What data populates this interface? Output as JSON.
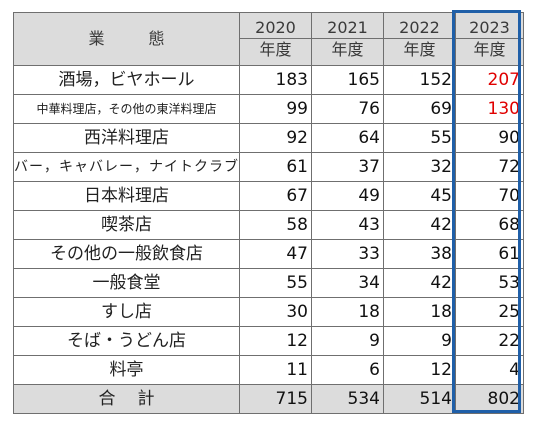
{
  "header": {
    "category_label": "業　態",
    "years": [
      {
        "year": "2020",
        "unit": "年度"
      },
      {
        "year": "2021",
        "unit": "年度"
      },
      {
        "year": "2022",
        "unit": "年度"
      },
      {
        "year": "2023",
        "unit": "年度"
      }
    ]
  },
  "rows": [
    {
      "name": "酒場，ビヤホール",
      "v2020": "183",
      "v2021": "165",
      "v2022": "152",
      "v2023": "207"
    },
    {
      "name": "中華料理店，その他の東洋料理店",
      "v2020": "99",
      "v2021": "76",
      "v2022": "69",
      "v2023": "130"
    },
    {
      "name": "西洋料理店",
      "v2020": "92",
      "v2021": "64",
      "v2022": "55",
      "v2023": "90"
    },
    {
      "name": "バー，キャバレー，ナイトクラブ",
      "v2020": "61",
      "v2021": "37",
      "v2022": "32",
      "v2023": "72"
    },
    {
      "name": "日本料理店",
      "v2020": "67",
      "v2021": "49",
      "v2022": "45",
      "v2023": "70"
    },
    {
      "name": "喫茶店",
      "v2020": "58",
      "v2021": "43",
      "v2022": "42",
      "v2023": "68"
    },
    {
      "name": "その他の一般飲食店",
      "v2020": "47",
      "v2021": "33",
      "v2022": "38",
      "v2023": "61"
    },
    {
      "name": "一般食堂",
      "v2020": "55",
      "v2021": "34",
      "v2022": "42",
      "v2023": "53"
    },
    {
      "name": "すし店",
      "v2020": "30",
      "v2021": "18",
      "v2022": "18",
      "v2023": "25"
    },
    {
      "name": "そば・うどん店",
      "v2020": "12",
      "v2021": "9",
      "v2022": "9",
      "v2023": "22"
    },
    {
      "name": "料亭",
      "v2020": "11",
      "v2021": "6",
      "v2022": "12",
      "v2023": "4"
    }
  ],
  "total": {
    "name": "合計",
    "v2020": "715",
    "v2021": "534",
    "v2022": "514",
    "v2023": "802"
  },
  "colors": {
    "header_bg": "#dcdcdc",
    "highlight_border": "#1f5fa8",
    "increase_text": "#e00000"
  }
}
